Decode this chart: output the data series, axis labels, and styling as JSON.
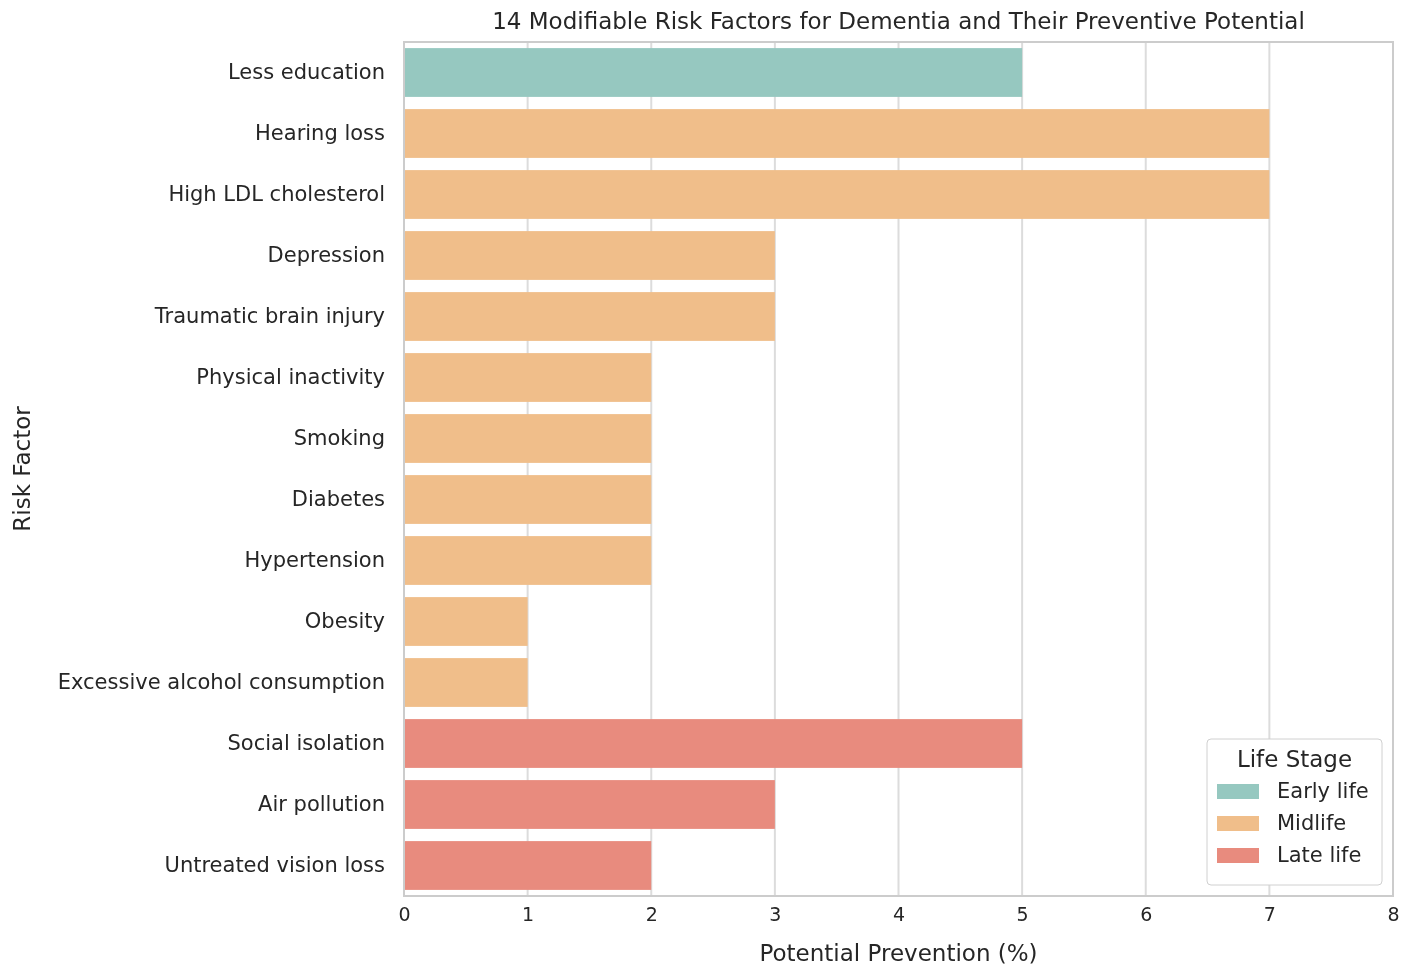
{
  "chart_data": {
    "type": "bar",
    "orientation": "horizontal",
    "title": "14 Modifiable Risk Factors for Dementia and Their Preventive Potential",
    "xlabel": "Potential Prevention (%)",
    "ylabel": "Risk Factor",
    "legend_title": "Life Stage",
    "categories": [
      "Less education",
      "Hearing loss",
      "High LDL cholesterol",
      "Depression",
      "Traumatic brain injury",
      "Physical inactivity",
      "Smoking",
      "Diabetes",
      "Hypertension",
      "Obesity",
      "Excessive alcohol consumption",
      "Social isolation",
      "Air pollution",
      "Untreated vision loss"
    ],
    "series": [
      {
        "name": "Early life",
        "color": "#96c8c0",
        "values": [
          5,
          null,
          null,
          null,
          null,
          null,
          null,
          null,
          null,
          null,
          null,
          null,
          null,
          null
        ]
      },
      {
        "name": "Midlife",
        "color": "#f0be8a",
        "values": [
          null,
          7,
          7,
          3,
          3,
          2,
          2,
          2,
          2,
          1,
          1,
          null,
          null,
          null
        ]
      },
      {
        "name": "Late life",
        "color": "#e88b7e",
        "values": [
          null,
          null,
          null,
          null,
          null,
          null,
          null,
          null,
          null,
          null,
          null,
          5,
          3,
          2
        ]
      }
    ],
    "xlim": [
      0,
      8
    ],
    "xticks": [
      0,
      1,
      2,
      3,
      4,
      5,
      6,
      7,
      8
    ],
    "grid": "x",
    "legend": "bottom right"
  }
}
